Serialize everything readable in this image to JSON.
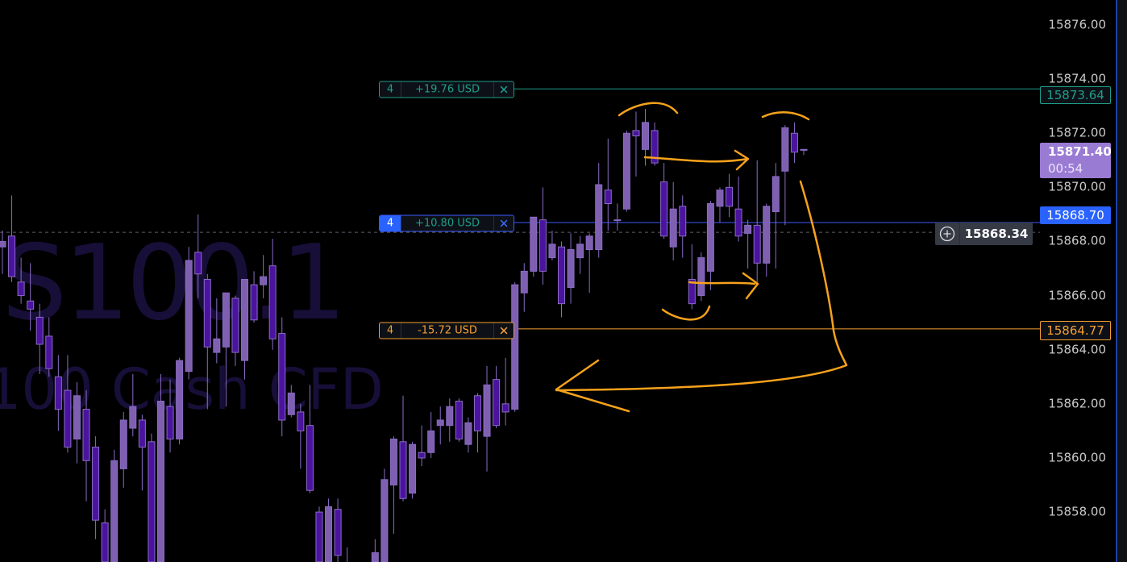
{
  "watermark": {
    "symbol": "S100.1",
    "description": "100 Cash CFD",
    "color": "#170f38"
  },
  "colors": {
    "bull": "#7e5fb0",
    "bear": "#4a149e",
    "take_profit": "#1e9e8a",
    "entry": "#3d5afe",
    "stop_loss": "#f5a031",
    "current_price": "#9a7bd4",
    "annotation": "#f7a21b"
  },
  "price_axis": {
    "ticks": [
      "15876.00",
      "15874.00",
      "15872.00",
      "15870.00",
      "15868.00",
      "15866.00",
      "15864.00",
      "15862.00",
      "15860.00",
      "15858.00"
    ]
  },
  "positions": [
    {
      "role": "take-profit",
      "qty": "4",
      "pnl": "+19.76 USD",
      "close": "✕",
      "price_label": "15873.64"
    },
    {
      "role": "entry",
      "qty": "4",
      "pnl": "+10.80 USD",
      "close": "✕",
      "price_label": "15868.70"
    },
    {
      "role": "stop-loss",
      "qty": "4",
      "pnl": "-15.72 USD",
      "close": "✕",
      "price_label": "15864.77"
    }
  ],
  "current_price": {
    "price": "15871.40",
    "countdown": "00:54"
  },
  "crosshair": {
    "price": "15868.34",
    "icon": "plus-circle-icon"
  },
  "chart_data": {
    "type": "candlestick",
    "ylim": [
      15855.0,
      15877.0
    ],
    "grid": false,
    "levels": {
      "take_profit": 15873.64,
      "entry": 15868.7,
      "stop_loss": 15864.77,
      "crosshair": 15868.34,
      "last": 15871.4
    },
    "candles": [
      [
        15867.8,
        15868.4,
        15866.8,
        15868.0
      ],
      [
        15868.2,
        15869.7,
        15866.5,
        15866.7
      ],
      [
        15866.5,
        15867.4,
        15865.7,
        15866.0
      ],
      [
        15865.8,
        15867.2,
        15864.7,
        15865.5
      ],
      [
        15865.2,
        15865.7,
        15863.1,
        15864.2
      ],
      [
        15864.5,
        15865.2,
        15863.0,
        15863.3
      ],
      [
        15863.0,
        15863.8,
        15861.0,
        15861.8
      ],
      [
        15862.5,
        15863.8,
        15860.2,
        15860.4
      ],
      [
        15860.7,
        15862.8,
        15859.8,
        15862.3
      ],
      [
        15861.8,
        15862.5,
        15858.4,
        15859.9
      ],
      [
        15860.4,
        15860.8,
        15857.0,
        15857.7
      ],
      [
        15857.6,
        15858.1,
        15855.2,
        15855.8
      ],
      [
        15855.5,
        15860.3,
        15855.2,
        15859.9
      ],
      [
        15859.6,
        15861.7,
        15858.9,
        15861.4
      ],
      [
        15861.1,
        15863.1,
        15860.8,
        15861.9
      ],
      [
        15861.4,
        15861.6,
        15858.8,
        15860.4
      ],
      [
        15860.6,
        15860.9,
        15855.2,
        15855.5
      ],
      [
        15855.5,
        15863.1,
        15855.2,
        15862.1
      ],
      [
        15861.9,
        15862.9,
        15860.2,
        15860.7
      ],
      [
        15860.7,
        15863.7,
        15860.5,
        15863.6
      ],
      [
        15863.2,
        15867.8,
        15862.9,
        15867.3
      ],
      [
        15867.6,
        15869.0,
        15865.9,
        15866.8
      ],
      [
        15866.6,
        15866.8,
        15861.8,
        15864.1
      ],
      [
        15863.9,
        15865.9,
        15863.5,
        15864.4
      ],
      [
        15864.1,
        15866.1,
        15861.9,
        15866.1
      ],
      [
        15865.9,
        15866.0,
        15863.4,
        15863.9
      ],
      [
        15863.6,
        15866.6,
        15862.9,
        15866.6
      ],
      [
        15866.4,
        15866.9,
        15865.0,
        15865.1
      ],
      [
        15866.4,
        15867.5,
        15865.9,
        15866.7
      ],
      [
        15867.1,
        15868.1,
        15864.0,
        15864.4
      ],
      [
        15864.6,
        15865.2,
        15860.8,
        15861.4
      ],
      [
        15861.6,
        15862.7,
        15861.5,
        15862.4
      ],
      [
        15861.7,
        15862.0,
        15859.6,
        15861.0
      ],
      [
        15861.2,
        15862.7,
        15858.7,
        15858.8
      ],
      [
        15858.0,
        15858.2,
        15855.2,
        15855.5
      ],
      [
        15855.6,
        15858.5,
        15855.3,
        15858.2
      ],
      [
        15858.1,
        15858.5,
        15856.0,
        15856.4
      ],
      [
        15856.0,
        15856.7,
        15854.5,
        15855.0
      ],
      null,
      null,
      [
        15855.6,
        15857.0,
        15855.3,
        15856.5
      ],
      [
        15855.6,
        15859.6,
        15855.3,
        15859.2
      ],
      [
        15859.0,
        15860.8,
        15857.2,
        15860.7
      ],
      [
        15860.6,
        15862.3,
        15858.4,
        15858.5
      ],
      [
        15858.7,
        15860.6,
        15858.5,
        15860.5
      ],
      [
        15860.2,
        15861.2,
        15859.7,
        15860.0
      ],
      [
        15860.2,
        15861.7,
        15860.0,
        15861.0
      ],
      [
        15861.2,
        15861.9,
        15860.5,
        15861.4
      ],
      [
        15861.2,
        15862.2,
        15860.6,
        15861.9
      ],
      [
        15862.1,
        15862.2,
        15860.6,
        15860.7
      ],
      [
        15860.5,
        15861.5,
        15860.2,
        15861.3
      ],
      [
        15862.3,
        15862.4,
        15860.2,
        15861.0
      ],
      [
        15860.8,
        15863.4,
        15859.5,
        15862.7
      ],
      [
        15862.9,
        15863.4,
        15861.1,
        15861.2
      ],
      [
        15862.0,
        15863.7,
        15861.2,
        15861.7
      ],
      [
        15861.8,
        15866.5,
        15861.7,
        15866.4
      ],
      [
        15866.1,
        15867.2,
        15865.4,
        15866.9
      ],
      [
        15866.9,
        15868.9,
        15866.7,
        15868.9
      ],
      [
        15868.8,
        15870.0,
        15866.4,
        15866.9
      ],
      [
        15867.4,
        15868.4,
        15867.3,
        15867.9
      ],
      [
        15867.8,
        15868.0,
        15865.2,
        15865.7
      ],
      [
        15866.3,
        15868.3,
        15865.7,
        15867.7
      ],
      [
        15867.4,
        15868.2,
        15866.8,
        15867.9
      ],
      [
        15867.7,
        15868.3,
        15866.1,
        15868.2
      ],
      [
        15867.7,
        15870.9,
        15867.4,
        15870.1
      ],
      [
        15869.9,
        15871.8,
        15868.4,
        15869.4
      ],
      [
        15868.8,
        15869.4,
        15868.4,
        15868.8
      ],
      [
        15869.2,
        15872.1,
        15869.1,
        15872.0
      ],
      [
        15872.1,
        15872.8,
        15870.4,
        15871.9
      ],
      [
        15871.4,
        15872.9,
        15870.8,
        15872.4
      ],
      [
        15872.1,
        15872.4,
        15870.8,
        15870.9
      ],
      [
        15870.2,
        15870.9,
        15868.1,
        15868.2
      ],
      [
        15867.8,
        15870.2,
        15867.3,
        15869.2
      ],
      [
        15869.3,
        15869.7,
        15867.4,
        15868.2
      ],
      [
        15866.6,
        15867.9,
        15865.5,
        15865.7
      ],
      [
        15866.0,
        15867.6,
        15865.8,
        15867.4
      ],
      [
        15866.9,
        15869.5,
        15866.2,
        15869.4
      ],
      [
        15869.3,
        15870.0,
        15868.7,
        15869.9
      ],
      [
        15870.0,
        15870.5,
        15868.9,
        15869.3
      ],
      [
        15869.2,
        15870.4,
        15868.0,
        15868.2
      ],
      [
        15868.3,
        15868.8,
        15867.0,
        15868.6
      ],
      [
        15868.6,
        15871.0,
        15866.5,
        15867.2
      ],
      [
        15867.2,
        15869.4,
        15866.7,
        15869.3
      ],
      [
        15869.1,
        15870.9,
        15867.0,
        15870.4
      ],
      [
        15870.6,
        15872.3,
        15868.6,
        15872.2
      ],
      [
        15872.0,
        15872.4,
        15870.9,
        15871.3
      ],
      [
        15871.4,
        15871.4,
        15871.2,
        15871.4
      ]
    ],
    "candle_format": [
      "open",
      "high",
      "low",
      "close"
    ]
  }
}
